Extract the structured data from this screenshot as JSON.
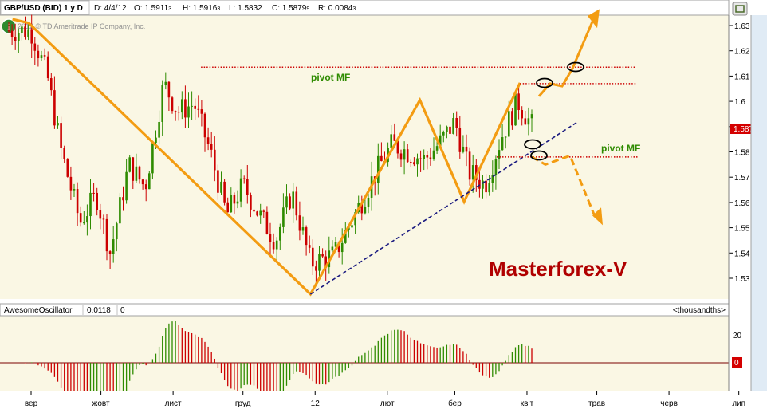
{
  "header": {
    "symbol": "GBP/USD (BID) 1 y D",
    "date": "D: 4/4/12",
    "open": "O: 1.5911",
    "open_sub": "3",
    "high": "H: 1.5916",
    "high_sub": "3",
    "low": "L: 1.5832",
    "low_sub": "",
    "close": "C: 1.5879",
    "close_sub": "9",
    "range": "R: 0.0084",
    "range_sub": "3"
  },
  "copyright": "2012 © TD Ameritrade IP Company, Inc.",
  "watermark": "Masterforex-V",
  "pivot_labels": [
    "pivot MF",
    "pivot MF"
  ],
  "price_label": {
    "main": "1.5879",
    "sub": "9"
  },
  "indicator": {
    "name": "AwesomeOscillator",
    "value": "0.0118",
    "extra": "0",
    "units": "<thousandths>",
    "zero_badge": "0"
  },
  "colors": {
    "up": "#2e8b00",
    "down": "#cc0000",
    "trend": "#f39c12",
    "support": "#1a1a80",
    "pivot": "#cc0000",
    "watermark": "#b00000",
    "background": "#faf7e4"
  },
  "chart_data": {
    "type": "candlestick",
    "title": "GBP/USD (BID) 1 y D",
    "price_axis": {
      "ticks": [
        "1.53",
        "1.54",
        "1.55",
        "1.56",
        "1.57",
        "1.58",
        "1.59",
        "1.6",
        "1.61",
        "1.62",
        "1.63"
      ],
      "ylim": [
        1.525,
        1.635
      ]
    },
    "oscillator_axis": {
      "ticks": [
        "20"
      ],
      "zero": "0"
    },
    "x_tick_labels": [
      "вер",
      "жовт",
      "лист",
      "груд",
      "12",
      "лют",
      "бер",
      "квіт",
      "трав",
      "черв",
      "лип"
    ],
    "trend_points": [
      {
        "date": "2011-08-31",
        "price": 1.631
      },
      {
        "date": "2011-12-30",
        "price": 1.5237
      },
      {
        "date": "2012-02-15",
        "price": 1.6005
      },
      {
        "date": "2012-03-05",
        "price": 1.5603
      },
      {
        "date": "2012-03-29",
        "price": 1.6073
      }
    ],
    "pivot_levels": [
      1.6135,
      1.607,
      1.578
    ],
    "forecast_up": [
      [
        1.602,
        1.607,
        1.606,
        1.613,
        1.633
      ]
    ],
    "forecast_down": [
      [
        1.578,
        1.575,
        1.5785,
        1.553
      ]
    ]
  }
}
